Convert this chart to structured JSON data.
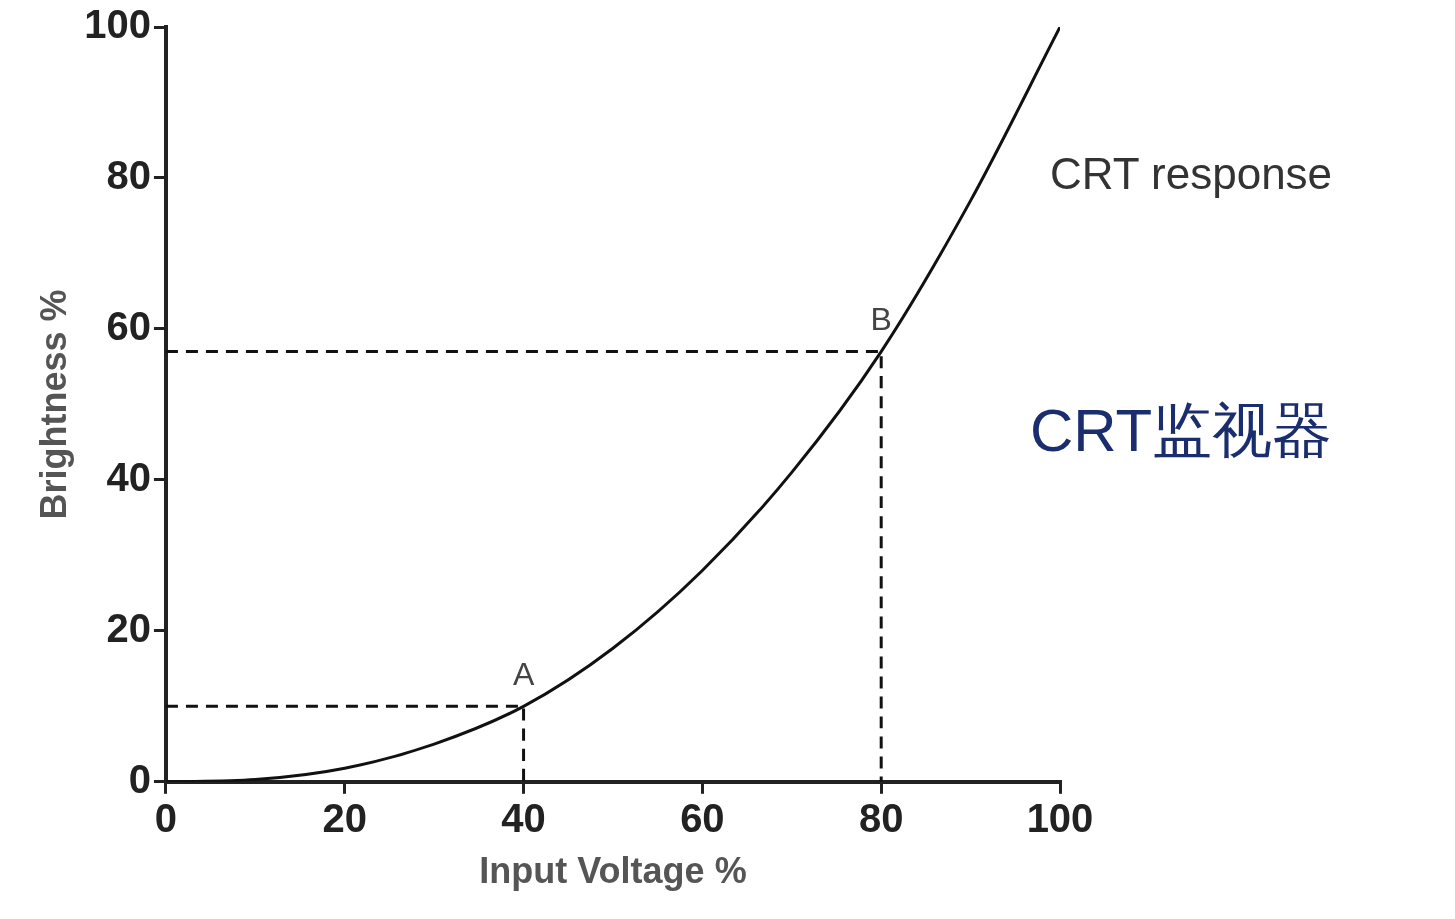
{
  "chart_data": {
    "type": "line",
    "xlabel": "Input Voltage %",
    "ylabel": "Brightness %",
    "xlim": [
      0,
      100
    ],
    "ylim": [
      0,
      100
    ],
    "xticks": [
      0,
      20,
      40,
      60,
      80,
      100
    ],
    "yticks": [
      0,
      20,
      40,
      60,
      80,
      100
    ],
    "marker": "none",
    "series": [
      {
        "name": "CRT response",
        "color": "#111111",
        "x": [
          0,
          10,
          20,
          30,
          40,
          50,
          60,
          70,
          80,
          90,
          100
        ],
        "values": [
          0,
          0.3,
          1.8,
          5,
          10,
          17.7,
          28,
          41,
          57,
          77,
          100
        ]
      },
      {
        "color": "#111111",
        "line_style": "dashed",
        "x": [
          0,
          40,
          40
        ],
        "values": [
          10,
          10,
          0
        ]
      },
      {
        "color": "#111111",
        "line_style": "dashed",
        "x": [
          0,
          80,
          80
        ],
        "values": [
          57,
          57,
          0
        ]
      }
    ],
    "annotations": [
      {
        "text": "A",
        "x": 40,
        "y": 10
      },
      {
        "text": "B",
        "x": 80,
        "y": 57
      },
      "CRT监视器"
    ]
  }
}
